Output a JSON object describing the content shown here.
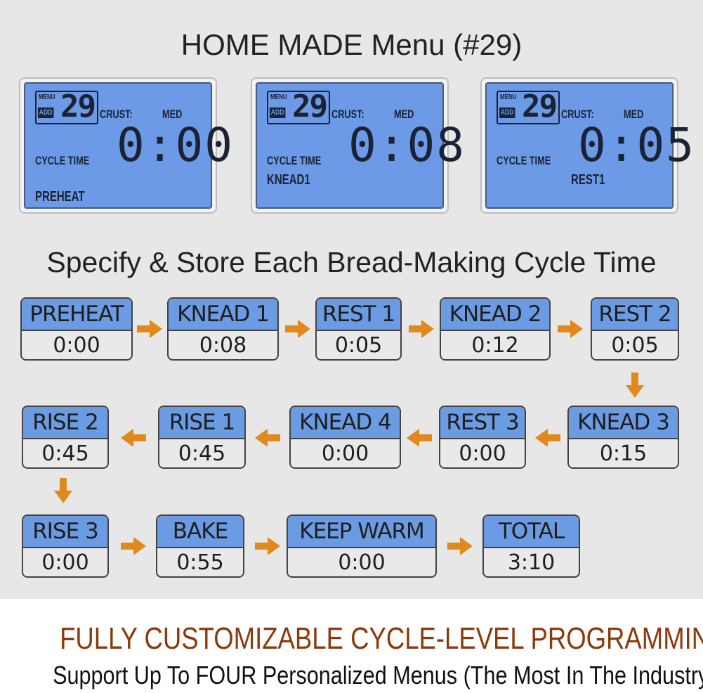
{
  "title": "HOME MADE Menu (#29)",
  "lcd_panels": [
    {
      "menu_label": "MENU",
      "add_label": "ADD",
      "menu_number": "29",
      "crust_label": "CRUST:",
      "crust_value": "MED",
      "time": "0:00",
      "cycle_time_label": "CYCLE TIME",
      "stage": "PREHEAT"
    },
    {
      "menu_label": "MENU",
      "add_label": "ADD",
      "menu_number": "29",
      "crust_label": "CRUST:",
      "crust_value": "MED",
      "time": "0:08",
      "cycle_time_label": "CYCLE TIME",
      "stage": "KNEAD1"
    },
    {
      "menu_label": "MENU",
      "add_label": "ADD",
      "menu_number": "29",
      "crust_label": "CRUST:",
      "crust_value": "MED",
      "time": "0:05",
      "cycle_time_label": "CYCLE TIME",
      "stage": "REST1"
    }
  ],
  "subtitle": "Specify & Store Each Bread-Making Cycle Time",
  "steps": [
    {
      "label": "PREHEAT",
      "time": "0:00"
    },
    {
      "label": "KNEAD 1",
      "time": "0:08"
    },
    {
      "label": "REST 1",
      "time": "0:05"
    },
    {
      "label": "KNEAD 2",
      "time": "0:12"
    },
    {
      "label": "REST 2",
      "time": "0:05"
    },
    {
      "label": "KNEAD 3",
      "time": "0:15"
    },
    {
      "label": "REST 3",
      "time": "0:00"
    },
    {
      "label": "KNEAD 4",
      "time": "0:00"
    },
    {
      "label": "RISE 1",
      "time": "0:45"
    },
    {
      "label": "RISE 2",
      "time": "0:45"
    },
    {
      "label": "RISE 3",
      "time": "0:00"
    },
    {
      "label": "BAKE",
      "time": "0:55"
    },
    {
      "label": "KEEP WARM",
      "time": "0:00"
    },
    {
      "label": "TOTAL",
      "time": "3:10"
    }
  ],
  "colors": {
    "step_header": "#6b9be3",
    "lcd": "#6c9ae6",
    "arrow": "#e0891d",
    "promo": "#8a3a0c"
  },
  "promo_heading": "FULLY CUSTOMIZABLE CYCLE-LEVEL PROGRAMMING",
  "promo_subheading": "Support Up To FOUR Personalized Menus (The Most In The Industry)"
}
